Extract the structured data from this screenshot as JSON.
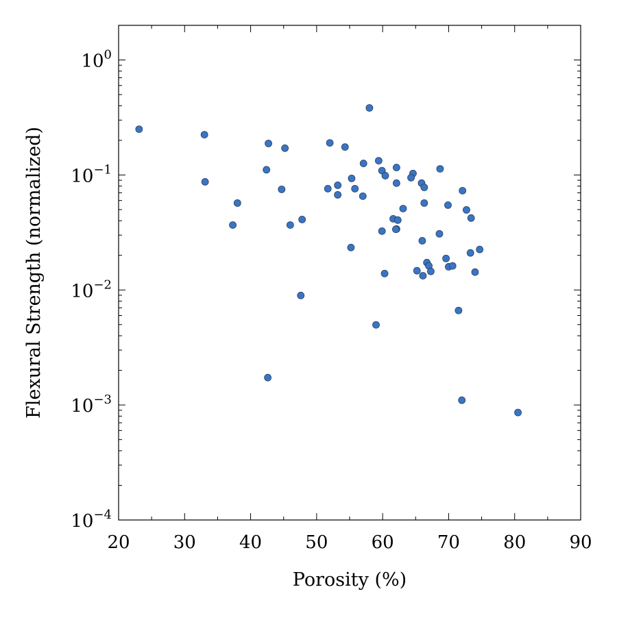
{
  "chart_data": {
    "type": "scatter",
    "xlabel": "Porosity (%)",
    "ylabel": "Flexural Strength (normalized)",
    "xlim": [
      20,
      90
    ],
    "ylim": [
      0.0001,
      2
    ],
    "yscale": "log",
    "xticks": [
      20,
      30,
      40,
      50,
      60,
      70,
      80,
      90
    ],
    "xtick_labels": [
      "20",
      "30",
      "40",
      "50",
      "60",
      "70",
      "80",
      "90"
    ],
    "yticks": [
      {
        "value": 1,
        "base": "10",
        "exp": "0"
      },
      {
        "value": 0.1,
        "base": "10",
        "exp": "−1"
      },
      {
        "value": 0.01,
        "base": "10",
        "exp": "−2"
      },
      {
        "value": 0.001,
        "base": "10",
        "exp": "−3"
      },
      {
        "value": 0.0001,
        "base": "10",
        "exp": "−4"
      }
    ],
    "grid": false,
    "marker_color": "#3a75c4",
    "marker_edge": "#2a3f5f",
    "points": [
      [
        23.1,
        0.25
      ],
      [
        33.0,
        0.224
      ],
      [
        33.1,
        0.0872
      ],
      [
        38.0,
        0.057
      ],
      [
        37.3,
        0.0367
      ],
      [
        42.7,
        0.188
      ],
      [
        42.4,
        0.111
      ],
      [
        45.2,
        0.171
      ],
      [
        44.7,
        0.075
      ],
      [
        46.0,
        0.0367
      ],
      [
        47.8,
        0.041
      ],
      [
        47.6,
        0.00896
      ],
      [
        42.6,
        0.00173
      ],
      [
        52.0,
        0.19
      ],
      [
        54.3,
        0.175
      ],
      [
        51.7,
        0.076
      ],
      [
        53.2,
        0.0814
      ],
      [
        53.2,
        0.0672
      ],
      [
        55.3,
        0.0934
      ],
      [
        55.8,
        0.076
      ],
      [
        57.0,
        0.0654
      ],
      [
        57.1,
        0.126
      ],
      [
        58.0,
        0.383
      ],
      [
        55.2,
        0.0234
      ],
      [
        59.4,
        0.133
      ],
      [
        59.9,
        0.109
      ],
      [
        60.4,
        0.0986
      ],
      [
        62.1,
        0.116
      ],
      [
        62.1,
        0.0849
      ],
      [
        59.9,
        0.0325
      ],
      [
        61.6,
        0.0416
      ],
      [
        62.3,
        0.0405
      ],
      [
        62.1,
        0.0339
      ],
      [
        62.0,
        0.0337
      ],
      [
        63.1,
        0.051
      ],
      [
        60.3,
        0.0139
      ],
      [
        59.0,
        0.00497
      ],
      [
        64.6,
        0.103
      ],
      [
        64.3,
        0.0947
      ],
      [
        65.9,
        0.0849
      ],
      [
        66.3,
        0.078
      ],
      [
        68.7,
        0.113
      ],
      [
        66.3,
        0.057
      ],
      [
        66.0,
        0.0268
      ],
      [
        69.9,
        0.0547
      ],
      [
        68.6,
        0.0308
      ],
      [
        72.1,
        0.073
      ],
      [
        72.7,
        0.0497
      ],
      [
        73.4,
        0.0422
      ],
      [
        65.2,
        0.0147
      ],
      [
        66.1,
        0.0133
      ],
      [
        66.7,
        0.0173
      ],
      [
        67.0,
        0.0162
      ],
      [
        67.3,
        0.0145
      ],
      [
        69.6,
        0.0188
      ],
      [
        70.0,
        0.0159
      ],
      [
        70.6,
        0.0162
      ],
      [
        73.3,
        0.021
      ],
      [
        74.7,
        0.0225
      ],
      [
        74.0,
        0.0143
      ],
      [
        71.5,
        0.00663
      ],
      [
        72.0,
        0.0011
      ],
      [
        80.5,
        0.00086
      ]
    ]
  }
}
